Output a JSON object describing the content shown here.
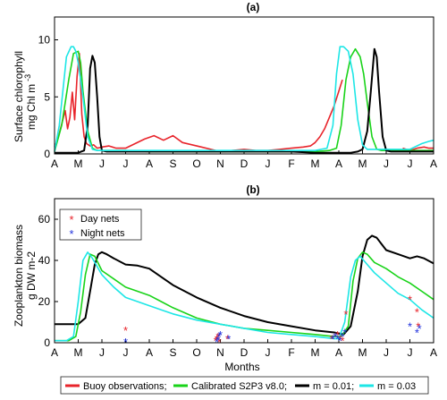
{
  "chart_data": [
    {
      "type": "line",
      "title": "(a)",
      "ylabel_lines": [
        "Surface chlorophyll",
        "mg Chl m"
      ],
      "ylabel_sup": "-3",
      "ylim": [
        0,
        12
      ],
      "yticks": [
        0,
        5,
        10
      ],
      "xlim": [
        0,
        16
      ],
      "month_ticks": [
        "A",
        "M",
        "J",
        "J",
        "A",
        "S",
        "O",
        "N",
        "D",
        "J",
        "F",
        "M",
        "A",
        "M",
        "J",
        "J",
        "A"
      ],
      "grid": false,
      "series": [
        {
          "name": "Buoy observations",
          "color": "#e8242b",
          "width": 1.6,
          "x": [
            0.0,
            0.15,
            0.3,
            0.45,
            0.55,
            0.65,
            0.75,
            0.85,
            0.95,
            1.05,
            1.15,
            1.25,
            1.35,
            1.5,
            1.65,
            1.8,
            2.0,
            2.3,
            2.6,
            3.0,
            3.4,
            3.8,
            4.2,
            4.6,
            5.0,
            5.4,
            5.8,
            6.2,
            6.6,
            7.0,
            7.2,
            7.5,
            8.0,
            8.5,
            9.0,
            9.5,
            10.0,
            10.5,
            10.8,
            11.0,
            11.2,
            11.4,
            11.6,
            11.8,
            12.0,
            12.15
          ],
          "y": [
            0.6,
            1.4,
            2.6,
            3.8,
            2.2,
            3.2,
            5.4,
            3.0,
            6.8,
            8.8,
            3.5,
            1.5,
            0.9,
            0.7,
            0.8,
            0.5,
            0.6,
            0.7,
            0.5,
            0.5,
            0.9,
            1.3,
            1.6,
            1.2,
            1.6,
            1.0,
            0.8,
            0.6,
            0.4,
            0.2,
            0.2,
            0.3,
            0.4,
            0.3,
            0.3,
            0.4,
            0.5,
            0.6,
            0.7,
            1.0,
            1.5,
            2.2,
            3.2,
            4.2,
            5.5,
            6.5
          ]
        },
        {
          "name": "Buoy observations (late season)",
          "color": "#e8242b",
          "width": 1.6,
          "x": [
            14.7,
            15.0,
            15.3,
            15.6,
            15.8,
            16.0
          ],
          "y": [
            0.5,
            0.3,
            0.5,
            0.6,
            0.5,
            0.5
          ]
        },
        {
          "name": "Calibrated S2P3 v8.0",
          "color": "#19d319",
          "width": 1.6,
          "x": [
            0.0,
            0.3,
            0.6,
            0.8,
            1.0,
            1.1,
            1.2,
            1.4,
            1.6,
            1.8,
            2.0,
            2.5,
            3.0,
            4.0,
            5.0,
            6.0,
            7.0,
            8.0,
            9.0,
            10.0,
            11.0,
            11.6,
            11.9,
            12.1,
            12.3,
            12.5,
            12.7,
            12.9,
            13.05,
            13.2,
            13.4,
            13.6,
            13.8,
            14.0,
            14.5,
            15.0,
            15.5,
            16.0
          ],
          "y": [
            0.2,
            2.5,
            6.5,
            8.8,
            9.0,
            8.0,
            5.5,
            2.0,
            0.5,
            0.3,
            0.3,
            0.3,
            0.3,
            0.2,
            0.2,
            0.2,
            0.2,
            0.2,
            0.2,
            0.2,
            0.2,
            0.3,
            0.5,
            2.5,
            6.5,
            8.5,
            9.2,
            8.5,
            7.0,
            4.5,
            1.5,
            0.4,
            0.3,
            0.3,
            0.3,
            0.3,
            0.3,
            0.3
          ]
        },
        {
          "name": "m = 0.01",
          "color": "#000000",
          "width": 2.0,
          "x": [
            0.0,
            1.0,
            1.25,
            1.4,
            1.5,
            1.6,
            1.7,
            1.8,
            1.9,
            2.0,
            2.2,
            2.5,
            3.0,
            4.0,
            5.0,
            6.0,
            7.0,
            8.0,
            9.0,
            10.0,
            11.0,
            12.0,
            12.5,
            12.8,
            13.0,
            13.2,
            13.35,
            13.5,
            13.6,
            13.7,
            13.85,
            14.0,
            14.2,
            14.5,
            15.0,
            15.5,
            16.0
          ],
          "y": [
            0.1,
            0.1,
            0.3,
            2.5,
            7.5,
            8.6,
            8.0,
            5.0,
            1.5,
            0.3,
            0.2,
            0.2,
            0.2,
            0.2,
            0.2,
            0.2,
            0.2,
            0.2,
            0.2,
            0.2,
            0.1,
            0.1,
            0.1,
            0.2,
            0.4,
            2.0,
            5.5,
            9.2,
            8.5,
            5.5,
            1.5,
            0.3,
            0.2,
            0.2,
            0.2,
            0.2,
            0.2
          ]
        },
        {
          "name": "m = 0.03",
          "color": "#1de6e6",
          "width": 1.6,
          "x": [
            0.0,
            0.2,
            0.5,
            0.7,
            0.8,
            0.9,
            1.0,
            1.2,
            1.4,
            1.6,
            1.8,
            2.0,
            2.5,
            3.0,
            4.0,
            5.0,
            6.0,
            7.0,
            8.0,
            9.0,
            10.0,
            11.0,
            11.5,
            11.75,
            11.9,
            12.05,
            12.2,
            12.4,
            12.6,
            12.8,
            13.0,
            13.2,
            13.5,
            14.0,
            14.5,
            15.0,
            15.2,
            15.5,
            15.8,
            16.0
          ],
          "y": [
            0.2,
            2.5,
            8.5,
            9.4,
            9.4,
            9.0,
            8.0,
            5.0,
            1.5,
            0.4,
            0.3,
            0.3,
            0.3,
            0.3,
            0.3,
            0.3,
            0.3,
            0.3,
            0.3,
            0.3,
            0.3,
            0.3,
            0.5,
            2.5,
            7.0,
            9.4,
            9.4,
            9.0,
            7.0,
            3.0,
            0.8,
            0.4,
            0.4,
            0.4,
            0.4,
            0.4,
            0.6,
            0.9,
            1.1,
            1.2
          ]
        }
      ]
    },
    {
      "type": "line",
      "title": "(b)",
      "ylabel_lines": [
        "Zooplankton biomass",
        "g DW m-2"
      ],
      "xlabel": "Months",
      "ylim": [
        0,
        70
      ],
      "yticks": [
        0,
        20,
        40,
        60
      ],
      "xlim": [
        0,
        16
      ],
      "month_ticks": [
        "A",
        "M",
        "J",
        "J",
        "A",
        "S",
        "O",
        "N",
        "D",
        "J",
        "F",
        "M",
        "A",
        "M",
        "J",
        "J",
        "A"
      ],
      "grid": false,
      "legend": {
        "placement": "top-left",
        "entries": [
          {
            "label": "Day nets",
            "color": "#e8242b"
          },
          {
            "label": "Night nets",
            "color": "#2233dd"
          }
        ]
      },
      "series": [
        {
          "name": "m = 0.01",
          "color": "#000000",
          "width": 2.0,
          "x": [
            0.0,
            1.0,
            1.3,
            1.5,
            1.7,
            1.85,
            2.0,
            2.2,
            2.5,
            3.0,
            3.5,
            4.0,
            4.5,
            5.0,
            6.0,
            7.0,
            8.0,
            9.0,
            10.0,
            11.0,
            11.8,
            12.2,
            12.5,
            12.8,
            13.0,
            13.2,
            13.4,
            13.6,
            13.8,
            14.0,
            14.5,
            15.0,
            15.3,
            15.6,
            16.0
          ],
          "y": [
            9,
            9,
            12,
            25,
            38,
            43,
            44,
            43,
            41,
            38,
            37.5,
            36,
            32,
            28,
            22,
            17,
            13,
            10,
            8,
            6,
            5,
            4,
            8,
            25,
            42,
            50,
            52,
            51,
            48,
            45,
            43,
            41,
            42,
            41,
            38.5
          ]
        },
        {
          "name": "Calibrated S2P3 v8.0",
          "color": "#19d319",
          "width": 1.6,
          "x": [
            0.0,
            0.6,
            0.9,
            1.1,
            1.3,
            1.5,
            1.7,
            2.0,
            2.5,
            3.0,
            3.5,
            4.0,
            4.5,
            5.0,
            6.0,
            7.0,
            8.0,
            9.0,
            10.0,
            11.0,
            11.8,
            12.1,
            12.4,
            12.6,
            12.8,
            13.0,
            13.2,
            13.5,
            14.0,
            14.5,
            15.0,
            15.5,
            16.0
          ],
          "y": [
            1,
            1,
            3,
            15,
            33,
            43,
            42,
            35,
            31,
            27,
            25,
            23,
            20,
            17,
            12,
            9,
            7,
            6,
            5,
            4,
            3,
            3,
            8,
            30,
            41,
            44,
            43,
            39,
            36,
            32,
            29,
            25,
            21
          ]
        },
        {
          "name": "m = 0.03",
          "color": "#1de6e6",
          "width": 1.6,
          "x": [
            0.0,
            0.5,
            0.8,
            1.0,
            1.2,
            1.4,
            1.6,
            2.0,
            2.5,
            3.0,
            3.5,
            4.0,
            4.5,
            5.0,
            6.0,
            7.0,
            8.0,
            9.0,
            10.0,
            11.0,
            11.8,
            12.0,
            12.25,
            12.5,
            12.7,
            12.9,
            13.2,
            13.5,
            14.0,
            14.5,
            15.0,
            15.5,
            16.0
          ],
          "y": [
            1,
            1,
            3,
            20,
            40,
            44,
            41,
            33,
            27,
            22,
            20,
            18,
            16,
            14,
            11,
            9,
            7,
            5,
            4,
            3,
            2,
            2,
            10,
            32,
            40,
            42,
            38,
            34,
            29,
            24,
            21,
            16,
            12
          ]
        }
      ],
      "scatter": [
        {
          "name": "Day nets",
          "color": "#e8242b",
          "x": [
            3.0,
            6.8,
            6.85,
            6.9,
            6.95,
            7.3,
            11.7,
            11.85,
            11.95,
            12.05,
            12.15,
            12.3,
            15.0,
            15.3,
            15.35
          ],
          "y": [
            6,
            1,
            2,
            3,
            0.5,
            2,
            2,
            3,
            4,
            2,
            1,
            14,
            21,
            15,
            8
          ]
        },
        {
          "name": "Night nets",
          "color": "#2233dd",
          "x": [
            3.0,
            6.85,
            6.9,
            6.95,
            7.0,
            7.35,
            11.75,
            11.85,
            11.95,
            12.05,
            12.15,
            12.25,
            15.0,
            15.3,
            15.4
          ],
          "y": [
            0.5,
            0.5,
            1.5,
            3,
            4,
            2,
            2,
            3,
            2,
            1,
            3,
            5,
            8,
            5,
            7
          ]
        }
      ]
    }
  ],
  "shared_legend": [
    {
      "label": "Buoy observations;",
      "color": "#e8242b"
    },
    {
      "label": "Calibrated S2P3 v8.0;",
      "color": "#19d319"
    },
    {
      "label": "m = 0.01;",
      "color": "#000000"
    },
    {
      "label": "m = 0.03",
      "color": "#1de6e6"
    }
  ]
}
